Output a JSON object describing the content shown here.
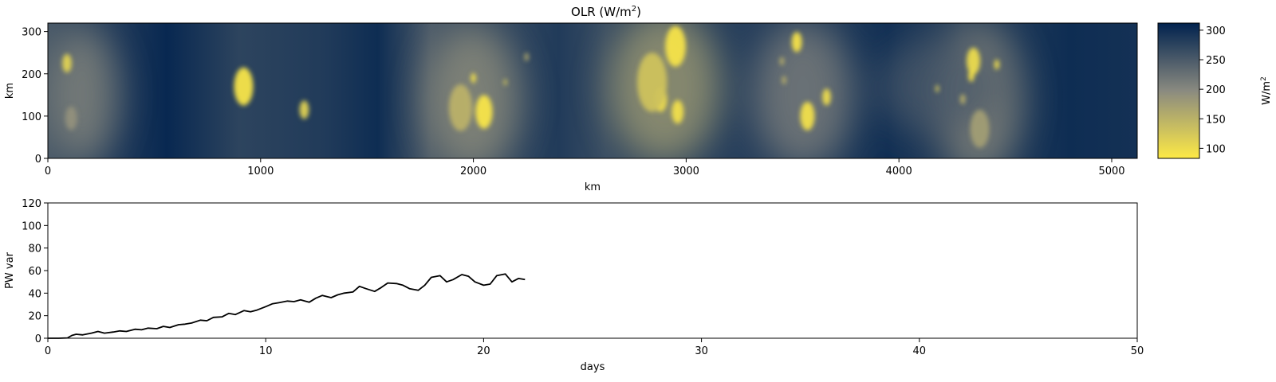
{
  "heatmap": {
    "title_main": "OLR (W/m",
    "title_sup": "2",
    "title_end": ")",
    "xlabel": "km",
    "ylabel": "km",
    "xlim": [
      0,
      5120
    ],
    "ylim": [
      0,
      320
    ],
    "xticks": [
      0,
      1000,
      2000,
      3000,
      4000,
      5000
    ],
    "yticks": [
      0,
      100,
      200,
      300
    ],
    "colormap": "cividis_r",
    "colorbar": {
      "label_main": "W/m",
      "label_sup": "2",
      "range": [
        83,
        312
      ],
      "ticks": [
        100,
        150,
        200,
        250,
        300
      ],
      "color_low": "#fde945",
      "color_mid": "#8a8a80",
      "color_high": "#00224e"
    },
    "background_bands": [
      {
        "x": 0,
        "olr": 255
      },
      {
        "x": 380,
        "olr": 290
      },
      {
        "x": 560,
        "olr": 305
      },
      {
        "x": 900,
        "olr": 275
      },
      {
        "x": 1300,
        "olr": 285
      },
      {
        "x": 1550,
        "olr": 300
      },
      {
        "x": 1800,
        "olr": 250
      },
      {
        "x": 2400,
        "olr": 285
      },
      {
        "x": 2620,
        "olr": 265
      },
      {
        "x": 3200,
        "olr": 280
      },
      {
        "x": 3700,
        "olr": 285
      },
      {
        "x": 3950,
        "olr": 298
      },
      {
        "x": 4300,
        "olr": 275
      },
      {
        "x": 4800,
        "olr": 300
      },
      {
        "x": 5120,
        "olr": 295
      }
    ],
    "haze_regions": [
      {
        "x": 160,
        "y": 150,
        "rx": 170,
        "ry": 160,
        "olr": 200
      },
      {
        "x": 2000,
        "y": 140,
        "rx": 220,
        "ry": 175,
        "olr": 190
      },
      {
        "x": 2900,
        "y": 170,
        "rx": 260,
        "ry": 180,
        "olr": 175
      },
      {
        "x": 3550,
        "y": 150,
        "rx": 230,
        "ry": 175,
        "olr": 205
      },
      {
        "x": 4380,
        "y": 140,
        "rx": 200,
        "ry": 180,
        "olr": 195
      },
      {
        "x": 4200,
        "y": 170,
        "rx": 300,
        "ry": 120,
        "olr": 250
      }
    ],
    "convective_cells": [
      {
        "x": 90,
        "y": 225,
        "r": 22,
        "olr": 110
      },
      {
        "x": 110,
        "y": 95,
        "r": 28,
        "olr": 190
      },
      {
        "x": 920,
        "y": 170,
        "r": 45,
        "olr": 88
      },
      {
        "x": 1205,
        "y": 115,
        "r": 22,
        "olr": 110
      },
      {
        "x": 2000,
        "y": 190,
        "r": 12,
        "olr": 95
      },
      {
        "x": 2050,
        "y": 110,
        "r": 40,
        "olr": 88
      },
      {
        "x": 1940,
        "y": 120,
        "r": 55,
        "olr": 150
      },
      {
        "x": 2150,
        "y": 180,
        "r": 8,
        "olr": 130
      },
      {
        "x": 2250,
        "y": 240,
        "r": 10,
        "olr": 160
      },
      {
        "x": 2950,
        "y": 265,
        "r": 48,
        "olr": 90
      },
      {
        "x": 2880,
        "y": 140,
        "r": 30,
        "olr": 95
      },
      {
        "x": 2960,
        "y": 110,
        "r": 28,
        "olr": 95
      },
      {
        "x": 2840,
        "y": 180,
        "r": 70,
        "olr": 130
      },
      {
        "x": 3520,
        "y": 275,
        "r": 24,
        "olr": 92
      },
      {
        "x": 3570,
        "y": 100,
        "r": 34,
        "olr": 95
      },
      {
        "x": 3660,
        "y": 145,
        "r": 20,
        "olr": 100
      },
      {
        "x": 3450,
        "y": 230,
        "r": 10,
        "olr": 150
      },
      {
        "x": 3460,
        "y": 185,
        "r": 10,
        "olr": 150
      },
      {
        "x": 4180,
        "y": 165,
        "r": 9,
        "olr": 130
      },
      {
        "x": 4350,
        "y": 230,
        "r": 32,
        "olr": 100
      },
      {
        "x": 4340,
        "y": 195,
        "r": 14,
        "olr": 90
      },
      {
        "x": 4460,
        "y": 222,
        "r": 12,
        "olr": 100
      },
      {
        "x": 4380,
        "y": 70,
        "r": 45,
        "olr": 175
      },
      {
        "x": 4300,
        "y": 140,
        "r": 12,
        "olr": 150
      }
    ]
  },
  "chart_data": {
    "type": "line",
    "xlabel": "days",
    "ylabel": "PW var",
    "xlim": [
      0,
      50
    ],
    "ylim": [
      0,
      120
    ],
    "xticks": [
      0,
      10,
      20,
      30,
      40,
      50
    ],
    "yticks": [
      0,
      20,
      40,
      60,
      80,
      100,
      120
    ],
    "line_color": "#000000",
    "series": [
      {
        "x": [
          0,
          0.5,
          0.9,
          1.1,
          1.3,
          1.6,
          2.0,
          2.3,
          2.6,
          3.0,
          3.3,
          3.6,
          4.0,
          4.3,
          4.6,
          5.0,
          5.3,
          5.6,
          6.0,
          6.3,
          6.6,
          7.0,
          7.3,
          7.6,
          8.0,
          8.3,
          8.6,
          9.0,
          9.3,
          9.6,
          10.0,
          10.3,
          10.6,
          11.0,
          11.3,
          11.6,
          12.0,
          12.3,
          12.6,
          13.0,
          13.3,
          13.6,
          14.0,
          14.3,
          14.6,
          15.0,
          15.3,
          15.6,
          16.0,
          16.3,
          16.6,
          17.0,
          17.3,
          17.6,
          18.0,
          18.3,
          18.6,
          19.0,
          19.3,
          19.6,
          20.0,
          20.3,
          20.6,
          21.0,
          21.3,
          21.6,
          21.9
        ],
        "y": [
          0,
          0,
          0.3,
          2.5,
          3.5,
          3.0,
          4.5,
          6.0,
          4.5,
          5.5,
          6.5,
          6.0,
          8.0,
          7.5,
          9.0,
          8.5,
          10.5,
          9.5,
          12.0,
          12.5,
          13.5,
          16.0,
          15.5,
          18.5,
          19.0,
          22.0,
          21.0,
          24.5,
          23.5,
          25.0,
          28.0,
          30.5,
          31.5,
          33.0,
          32.5,
          34.0,
          32.0,
          35.5,
          38.0,
          36.0,
          38.5,
          40.0,
          41.0,
          46.0,
          44.0,
          41.5,
          45.0,
          49.0,
          48.5,
          47.0,
          44.0,
          42.5,
          47.0,
          54.0,
          55.5,
          50.0,
          52.0,
          56.5,
          55.0,
          50.0,
          47.0,
          48.0,
          55.5,
          57.0,
          50.0,
          53.0,
          52.0
        ]
      }
    ]
  }
}
